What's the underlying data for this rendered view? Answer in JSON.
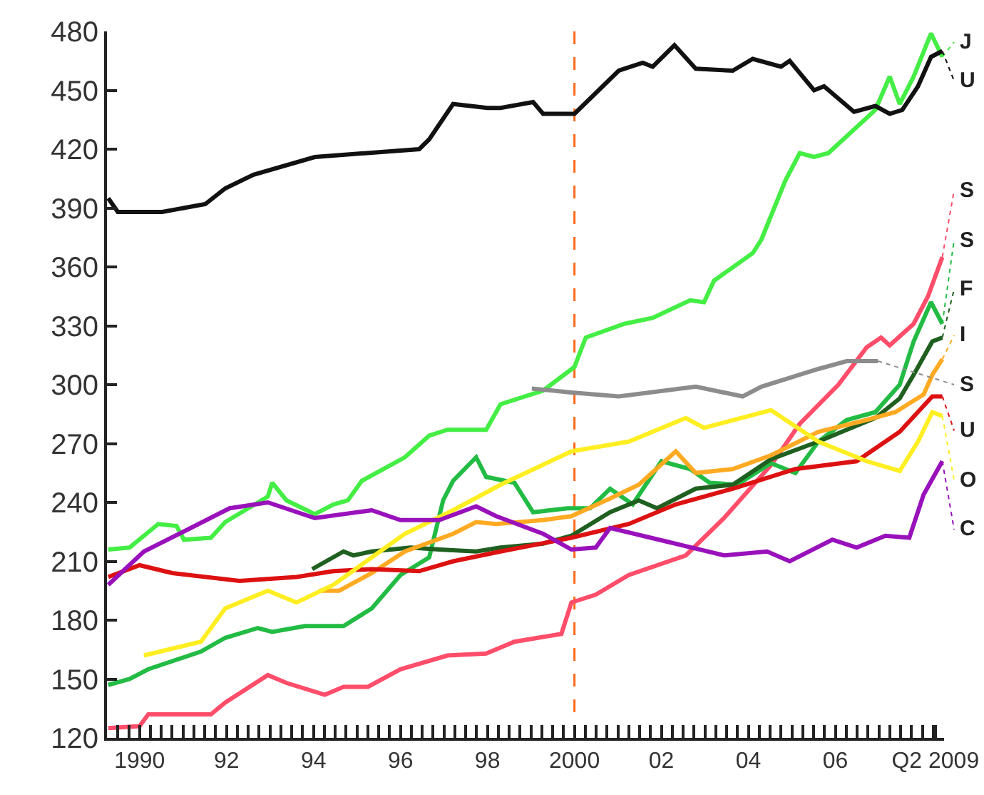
{
  "chart_data": {
    "type": "line",
    "marker": "none",
    "line_style": "solid",
    "grid": false,
    "legend": "right",
    "xlim": [
      1989.25,
      2008.5
    ],
    "ylim": [
      120,
      480
    ],
    "xticks": [
      {
        "value": 1990,
        "label": "1990"
      },
      {
        "value": 1992,
        "label": "92"
      },
      {
        "value": 1994,
        "label": "94"
      },
      {
        "value": 1996,
        "label": "96"
      },
      {
        "value": 1998,
        "label": "98"
      },
      2000,
      {
        "value": 2002,
        "label": "02"
      },
      {
        "value": 2004,
        "label": "04"
      },
      {
        "value": 2006,
        "label": "06"
      },
      {
        "value": 2008.3,
        "label": "Q2 2009"
      }
    ],
    "yticks": [
      120,
      150,
      180,
      210,
      240,
      270,
      300,
      330,
      360,
      390,
      420,
      450,
      480
    ],
    "ref_lines": [
      {
        "axis": "x",
        "value": 2000,
        "color": "#ff6a1a",
        "line_style": "dashed"
      }
    ],
    "series": [
      {
        "name": "J",
        "color": "#44ee44",
        "x": [
          1989.28,
          1989.77,
          1990.43,
          1990.85,
          1991.02,
          1991.64,
          1991.97,
          1992.95,
          1993.05,
          1993.38,
          1994.03,
          1994.46,
          1994.79,
          1995.11,
          1996.1,
          1996.66,
          1997.08,
          1997.74,
          1997.97,
          1998.3,
          1999.28,
          2000.0,
          2000.26,
          2001.15,
          2001.8,
          2002.66,
          2002.98,
          2003.21,
          2004.1,
          2004.3,
          2004.85,
          2005.18,
          2005.51,
          2005.84,
          2006.92,
          2007.25,
          2007.48,
          2007.8,
          2008.2,
          2008.46
        ],
        "values": [
          216,
          217,
          229,
          228,
          221,
          222,
          230,
          243,
          250,
          241,
          234,
          239,
          241,
          251,
          263,
          274,
          277,
          277,
          277,
          290,
          297,
          309,
          324,
          331,
          334,
          343,
          342,
          353,
          367,
          374,
          404,
          418,
          416,
          418,
          440,
          457,
          443,
          457,
          479,
          467
        ]
      },
      {
        "name": "U",
        "color": "#111111",
        "x": [
          1989.28,
          1989.5,
          1990.52,
          1991.51,
          1991.97,
          1992.62,
          1994.03,
          1996.43,
          1996.66,
          1997.21,
          1998.0,
          1998.3,
          1999.05,
          1999.28,
          2000.0,
          2001.02,
          2001.57,
          2001.8,
          2002.3,
          2002.79,
          2003.64,
          2004.1,
          2004.75,
          2004.95,
          2005.51,
          2005.74,
          2006.43,
          2006.92,
          2007.25,
          2007.54,
          2007.9,
          2008.2,
          2008.46
        ],
        "values": [
          395,
          388,
          388,
          392,
          400,
          407,
          416,
          420,
          425,
          443,
          441,
          441,
          444,
          438,
          438,
          460,
          464,
          462,
          473,
          461,
          460,
          466,
          462,
          465,
          450,
          452,
          439,
          442,
          438,
          440,
          452,
          467,
          470
        ]
      },
      {
        "name": "S",
        "color": "#ff4d6a",
        "x": [
          1989.28,
          1990.0,
          1990.2,
          1991.64,
          1991.97,
          1992.95,
          1993.38,
          1994.26,
          1994.69,
          1995.25,
          1996.0,
          1997.08,
          1997.97,
          1998.62,
          1999.7,
          1999.93,
          2000.49,
          2001.25,
          2002.56,
          2003.44,
          2004.52,
          2005.18,
          2006.07,
          2006.72,
          2007.05,
          2007.25,
          2007.8,
          2008.13,
          2008.46
        ],
        "values": [
          125,
          126,
          132,
          132,
          138,
          152,
          148,
          142,
          146,
          146,
          155,
          162,
          163,
          169,
          173,
          189,
          193,
          203,
          213,
          232,
          259,
          280,
          300,
          319,
          324,
          320,
          331,
          345,
          365
        ]
      },
      {
        "name": "S",
        "color": "#22bb44",
        "x": [
          1989.28,
          1989.77,
          1990.2,
          1991.41,
          1991.97,
          1992.72,
          1993.05,
          1993.8,
          1994.69,
          1995.34,
          1996.0,
          1996.66,
          1996.98,
          1997.21,
          1997.74,
          1997.97,
          1998.62,
          1999.05,
          1999.84,
          2000.36,
          2000.82,
          2001.34,
          2002.0,
          2002.66,
          2003.11,
          2003.74,
          2004.52,
          2005.08,
          2005.61,
          2006.26,
          2006.92,
          2007.48,
          2007.8,
          2008.2,
          2008.46
        ],
        "values": [
          147,
          150,
          155,
          164,
          171,
          176,
          174,
          177,
          177,
          186,
          203,
          212,
          241,
          251,
          263,
          253,
          250,
          235,
          237,
          237,
          247,
          239,
          261,
          257,
          250,
          249,
          260,
          255,
          271,
          282,
          286,
          300,
          322,
          342,
          331
        ]
      },
      {
        "name": "F",
        "color": "#1f5f1f",
        "x": [
          1993.97,
          1994.69,
          1994.92,
          1995.34,
          1996.23,
          1996.89,
          1997.74,
          1998.3,
          1999.28,
          1999.93,
          2000.82,
          2001.48,
          2001.9,
          2002.79,
          2003.64,
          2004.52,
          2005.61,
          2006.26,
          2006.92,
          2007.48,
          2007.8,
          2008.23,
          2008.46
        ],
        "values": [
          206,
          215,
          213,
          215,
          217,
          216,
          215,
          217,
          219,
          223,
          235,
          241,
          237,
          247,
          249,
          262,
          271,
          277,
          283,
          293,
          305,
          322,
          324
        ]
      },
      {
        "name": "I",
        "color": "#ffaa22",
        "x": [
          1994.13,
          1994.59,
          1995.34,
          1996.1,
          1997.21,
          1997.74,
          1998.2,
          1999.28,
          1999.93,
          2000.82,
          2001.48,
          2002.33,
          2002.79,
          2003.64,
          2004.52,
          2005.61,
          2006.72,
          2007.38,
          2008.03,
          2008.23,
          2008.46
        ],
        "values": [
          195,
          195,
          204,
          215,
          224,
          230,
          229,
          231,
          233,
          242,
          249,
          266,
          255,
          257,
          264,
          276,
          282,
          286,
          295,
          305,
          313
        ]
      },
      {
        "name": "S",
        "color": "#8c8c8c",
        "x": [
          1999.02,
          1999.93,
          2001.02,
          2002.79,
          2003.87,
          2004.3,
          2005.61,
          2006.26,
          2006.98
        ],
        "values": [
          298,
          296,
          294,
          299,
          294,
          299,
          308,
          312,
          312
        ]
      },
      {
        "name": "U",
        "color": "#dd1111",
        "x": [
          1989.28,
          1990.0,
          1990.75,
          1992.3,
          1993.61,
          1994.46,
          1995.34,
          1996.43,
          1997.21,
          1998.3,
          1999.93,
          2001.25,
          2002.33,
          2003.64,
          2005.08,
          2006.49,
          2007.48,
          2008.23,
          2008.46
        ],
        "values": [
          202,
          208,
          204,
          200,
          202,
          205,
          206,
          205,
          210,
          215,
          222,
          229,
          239,
          247,
          257,
          261,
          276,
          294,
          294
        ]
      },
      {
        "name": "O",
        "color": "#ffee22",
        "x": [
          1990.1,
          1991.41,
          1991.97,
          1992.95,
          1993.61,
          1994.46,
          1995.34,
          1996.1,
          1997.21,
          1998.3,
          1999.93,
          2001.25,
          2002.56,
          2002.98,
          2004.52,
          2005.61,
          2006.72,
          2007.48,
          2007.9,
          2008.23,
          2008.46
        ],
        "values": [
          162,
          169,
          186,
          195,
          189,
          198,
          212,
          224,
          236,
          249,
          266,
          271,
          283,
          278,
          287,
          271,
          261,
          256,
          271,
          286,
          284
        ]
      },
      {
        "name": "C",
        "color": "#9911bb",
        "x": [
          1989.28,
          1990.1,
          1991.18,
          1992.07,
          1992.95,
          1994.03,
          1995.34,
          1996.0,
          1996.89,
          1997.74,
          1998.2,
          1999.28,
          1999.93,
          2000.49,
          2000.82,
          2002.13,
          2003.44,
          2004.43,
          2004.95,
          2005.93,
          2006.49,
          2007.15,
          2007.7,
          2008.03,
          2008.46
        ],
        "values": [
          198,
          215,
          227,
          237,
          240,
          232,
          236,
          231,
          231,
          238,
          233,
          224,
          216,
          217,
          227,
          220,
          213,
          215,
          210,
          221,
          217,
          223,
          222,
          244,
          261
        ]
      }
    ]
  }
}
